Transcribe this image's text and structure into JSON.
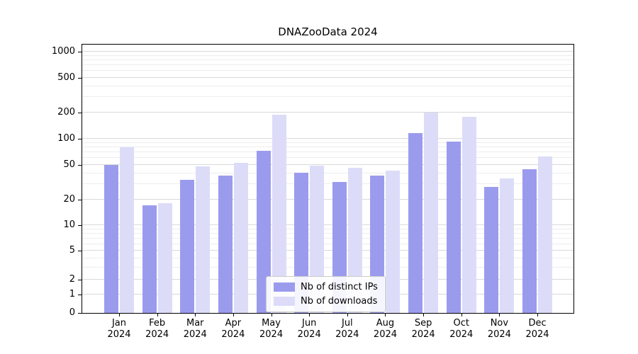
{
  "chart_data": {
    "type": "bar",
    "title": "DNAZooData 2024",
    "categories": [
      "Jan 2024",
      "Feb 2024",
      "Mar 2024",
      "Apr 2024",
      "May 2024",
      "Jun 2024",
      "Jul 2024",
      "Aug 2024",
      "Sep 2024",
      "Oct 2024",
      "Nov 2024",
      "Dec 2024"
    ],
    "series": [
      {
        "name": "Nb of distinct IPs",
        "color": "#9b9bee",
        "values": [
          50,
          17,
          34,
          38,
          72,
          41,
          32,
          38,
          115,
          92,
          28,
          45
        ]
      },
      {
        "name": "Nb of downloads",
        "color": "#dcdcf9",
        "values": [
          80,
          18,
          48,
          53,
          190,
          49,
          46,
          43,
          198,
          180,
          35,
          62
        ]
      }
    ],
    "xlabel": "",
    "ylabel": "",
    "yscale": "asinh-log",
    "yticks": [
      0,
      1,
      2,
      5,
      10,
      20,
      50,
      100,
      200,
      500,
      1000
    ],
    "ylim": [
      0,
      1200
    ],
    "grid": true,
    "legend_position": "lower center"
  },
  "colors": {
    "grid_major": "#d9d9d9",
    "grid_minor": "#ededed",
    "axis": "#000000",
    "legend_border": "#cccccc"
  }
}
